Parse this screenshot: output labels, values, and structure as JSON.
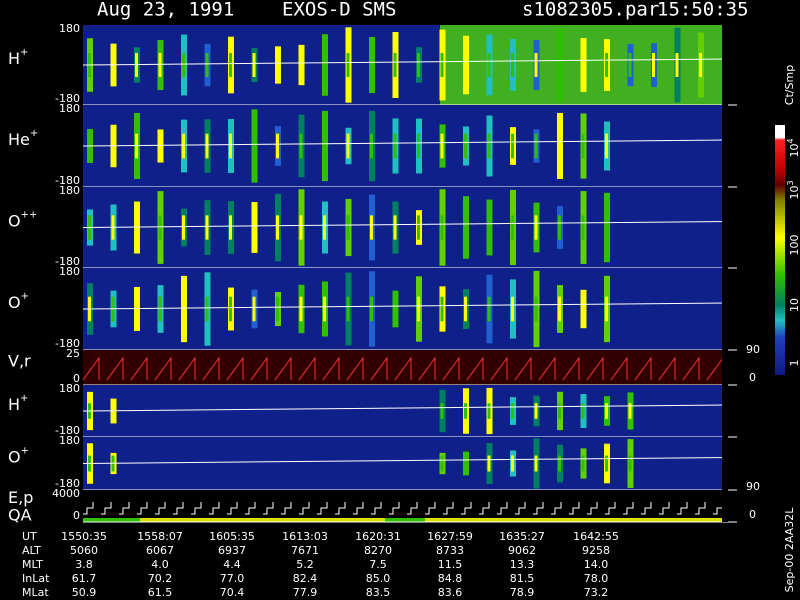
{
  "header": {
    "date": "Aug 23, 1991",
    "instrument": "EXOS-D SMS",
    "file": "s1082305.par",
    "time": "15:50:35"
  },
  "panels": [
    {
      "label": "H",
      "sup": "+",
      "top": "180",
      "bottom": "-180"
    },
    {
      "label": "He",
      "sup": "+",
      "top": "180",
      "bottom": "-180"
    },
    {
      "label": "O",
      "sup": "++",
      "top": "180",
      "bottom": "-180"
    },
    {
      "label": "O",
      "sup": "+",
      "top": "180",
      "bottom": "-180"
    },
    {
      "label": "V,r",
      "top": "25",
      "bottom": "0",
      "right_top": "90",
      "right_bottom": "0"
    },
    {
      "label": "H",
      "sup": "+",
      "top": "180",
      "bottom": "-180"
    },
    {
      "label": "O",
      "sup": "+",
      "top": "180",
      "bottom": "-180"
    },
    {
      "label": "E,p",
      "label2": "QA",
      "top": "4000",
      "bottom": "0",
      "right_top": "90",
      "right_bottom": "0"
    }
  ],
  "colorbar": {
    "unit": "Ct/Smp",
    "labels": [
      {
        "base": "10",
        "exp": "4"
      },
      {
        "base": "10",
        "exp": "3"
      },
      {
        "base": "100"
      },
      {
        "base": "10"
      },
      {
        "base": "1"
      }
    ]
  },
  "side_label": "Sep-00  2AA32L",
  "footer": {
    "rows": [
      {
        "label": "UT",
        "values": [
          "1550:35",
          "1558:07",
          "1605:35",
          "1613:03",
          "1620:31",
          "1627:59",
          "1635:27",
          "1642:55"
        ]
      },
      {
        "label": "ALT",
        "values": [
          "5060",
          "6067",
          "6937",
          "7671",
          "8270",
          "8733",
          "9062",
          "9258"
        ]
      },
      {
        "label": "MLT",
        "values": [
          "3.8",
          "4.0",
          "4.4",
          "5.2",
          "7.5",
          "11.5",
          "13.3",
          "14.0"
        ]
      },
      {
        "label": "InLat",
        "values": [
          "61.7",
          "70.2",
          "77.0",
          "82.4",
          "85.0",
          "84.8",
          "81.5",
          "78.0"
        ]
      },
      {
        "label": "MLat",
        "values": [
          "50.9",
          "61.5",
          "70.4",
          "77.9",
          "83.5",
          "83.6",
          "78.9",
          "73.2"
        ]
      }
    ]
  }
}
